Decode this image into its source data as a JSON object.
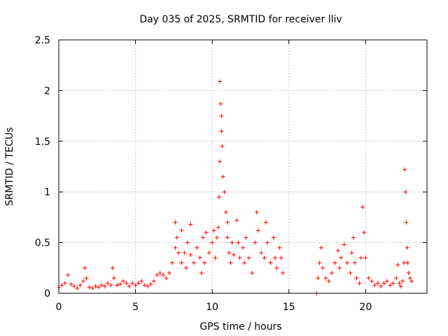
{
  "chart_data": {
    "type": "scatter",
    "title": "Day 035 of 2025, SRMTID for receiver lliv",
    "xlabel": "GPS time / hours",
    "ylabel": "SRMTID / TECUs",
    "xlim": [
      0,
      24
    ],
    "ylim": [
      0,
      2.5
    ],
    "xticks": [
      0,
      5,
      10,
      15,
      20
    ],
    "xtick_labels": [
      "0",
      "5",
      "10",
      "15",
      "20"
    ],
    "yticks": [
      0,
      0.5,
      1,
      1.5,
      2,
      2.5
    ],
    "ytick_labels": [
      "0",
      "0.5",
      "1",
      "1.5",
      "2",
      "2.5"
    ],
    "grid": true,
    "marker": "+",
    "color": "#ff0000",
    "series": [
      {
        "name": "SRMTID",
        "points": [
          [
            0.0,
            0.06
          ],
          [
            0.2,
            0.08
          ],
          [
            0.4,
            0.1
          ],
          [
            0.6,
            0.18
          ],
          [
            0.8,
            0.09
          ],
          [
            1.0,
            0.07
          ],
          [
            1.2,
            0.05
          ],
          [
            1.4,
            0.08
          ],
          [
            1.6,
            0.12
          ],
          [
            1.7,
            0.25
          ],
          [
            1.8,
            0.15
          ],
          [
            2.0,
            0.06
          ],
          [
            2.2,
            0.05
          ],
          [
            2.4,
            0.07
          ],
          [
            2.6,
            0.06
          ],
          [
            2.8,
            0.08
          ],
          [
            3.0,
            0.07
          ],
          [
            3.2,
            0.1
          ],
          [
            3.4,
            0.08
          ],
          [
            3.5,
            0.25
          ],
          [
            3.6,
            0.15
          ],
          [
            3.8,
            0.08
          ],
          [
            4.0,
            0.09
          ],
          [
            4.2,
            0.12
          ],
          [
            4.4,
            0.1
          ],
          [
            4.6,
            0.07
          ],
          [
            4.8,
            0.1
          ],
          [
            5.0,
            0.08
          ],
          [
            5.2,
            0.1
          ],
          [
            5.4,
            0.12
          ],
          [
            5.6,
            0.08
          ],
          [
            5.8,
            0.07
          ],
          [
            6.0,
            0.09
          ],
          [
            6.2,
            0.12
          ],
          [
            6.4,
            0.18
          ],
          [
            6.6,
            0.2
          ],
          [
            6.8,
            0.18
          ],
          [
            7.0,
            0.15
          ],
          [
            7.2,
            0.2
          ],
          [
            7.4,
            0.3
          ],
          [
            7.6,
            0.7
          ],
          [
            7.6,
            0.45
          ],
          [
            7.7,
            0.55
          ],
          [
            7.8,
            0.4
          ],
          [
            8.0,
            0.62
          ],
          [
            8.0,
            0.3
          ],
          [
            8.2,
            0.4
          ],
          [
            8.3,
            0.25
          ],
          [
            8.4,
            0.5
          ],
          [
            8.6,
            0.38
          ],
          [
            8.6,
            0.68
          ],
          [
            8.8,
            0.3
          ],
          [
            9.0,
            0.45
          ],
          [
            9.2,
            0.35
          ],
          [
            9.3,
            0.2
          ],
          [
            9.4,
            0.55
          ],
          [
            9.5,
            0.3
          ],
          [
            9.6,
            0.6
          ],
          [
            9.8,
            0.4
          ],
          [
            10.0,
            0.5
          ],
          [
            10.1,
            0.62
          ],
          [
            10.2,
            0.35
          ],
          [
            10.3,
            0.55
          ],
          [
            10.4,
            0.65
          ],
          [
            10.45,
            0.95
          ],
          [
            10.5,
            1.3
          ],
          [
            10.5,
            2.09
          ],
          [
            10.55,
            1.87
          ],
          [
            10.6,
            1.6
          ],
          [
            10.6,
            1.75
          ],
          [
            10.65,
            1.45
          ],
          [
            10.7,
            1.15
          ],
          [
            10.8,
            1.0
          ],
          [
            10.9,
            0.8
          ],
          [
            11.0,
            0.7
          ],
          [
            11.0,
            0.55
          ],
          [
            11.1,
            0.4
          ],
          [
            11.2,
            0.3
          ],
          [
            11.3,
            0.5
          ],
          [
            11.4,
            0.38
          ],
          [
            11.6,
            0.72
          ],
          [
            11.7,
            0.5
          ],
          [
            11.8,
            0.35
          ],
          [
            12.0,
            0.45
          ],
          [
            12.1,
            0.3
          ],
          [
            12.2,
            0.55
          ],
          [
            12.4,
            0.35
          ],
          [
            12.6,
            0.2
          ],
          [
            12.8,
            0.5
          ],
          [
            12.9,
            0.8
          ],
          [
            13.0,
            0.62
          ],
          [
            13.2,
            0.4
          ],
          [
            13.4,
            0.35
          ],
          [
            13.5,
            0.7
          ],
          [
            13.6,
            0.5
          ],
          [
            13.8,
            0.3
          ],
          [
            14.0,
            0.55
          ],
          [
            14.1,
            0.35
          ],
          [
            14.2,
            0.25
          ],
          [
            14.4,
            0.45
          ],
          [
            14.5,
            0.35
          ],
          [
            14.6,
            0.2
          ],
          [
            16.8,
            0.0
          ],
          [
            16.9,
            0.15
          ],
          [
            17.0,
            0.3
          ],
          [
            17.1,
            0.45
          ],
          [
            17.2,
            0.25
          ],
          [
            17.4,
            0.15
          ],
          [
            17.6,
            0.12
          ],
          [
            17.8,
            0.2
          ],
          [
            18.0,
            0.3
          ],
          [
            18.2,
            0.42
          ],
          [
            18.3,
            0.25
          ],
          [
            18.4,
            0.35
          ],
          [
            18.6,
            0.48
          ],
          [
            18.8,
            0.3
          ],
          [
            19.0,
            0.2
          ],
          [
            19.1,
            0.4
          ],
          [
            19.2,
            0.55
          ],
          [
            19.3,
            0.3
          ],
          [
            19.4,
            0.15
          ],
          [
            19.6,
            0.1
          ],
          [
            19.7,
            0.35
          ],
          [
            19.8,
            0.85
          ],
          [
            19.9,
            0.6
          ],
          [
            20.0,
            0.35
          ],
          [
            20.2,
            0.15
          ],
          [
            20.4,
            0.12
          ],
          [
            20.6,
            0.08
          ],
          [
            20.8,
            0.1
          ],
          [
            21.0,
            0.07
          ],
          [
            21.2,
            0.1
          ],
          [
            21.4,
            0.12
          ],
          [
            21.6,
            0.08
          ],
          [
            21.8,
            0.1
          ],
          [
            22.0,
            0.15
          ],
          [
            22.1,
            0.28
          ],
          [
            22.2,
            0.1
          ],
          [
            22.3,
            0.07
          ],
          [
            22.4,
            0.12
          ],
          [
            22.5,
            0.3
          ],
          [
            22.55,
            1.22
          ],
          [
            22.6,
            1.0
          ],
          [
            22.65,
            0.7
          ],
          [
            22.7,
            0.45
          ],
          [
            22.75,
            0.3
          ],
          [
            22.8,
            0.2
          ],
          [
            22.9,
            0.15
          ],
          [
            23.0,
            0.12
          ]
        ]
      }
    ]
  }
}
